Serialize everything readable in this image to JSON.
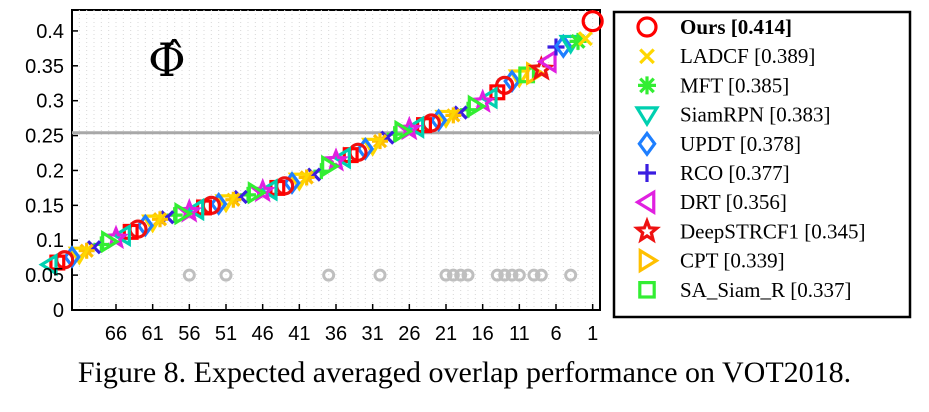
{
  "caption": "Figure 8. Expected averaged overlap performance on VOT2018.",
  "chart_data": {
    "type": "scatter",
    "title": "",
    "xlabel": "",
    "ylabel": "",
    "symbol_label": "Φ̂",
    "x_ticks": [
      "66",
      "61",
      "56",
      "51",
      "46",
      "41",
      "36",
      "31",
      "26",
      "21",
      "16",
      "11",
      "6",
      "1"
    ],
    "x_tick_ranks": [
      66,
      61,
      56,
      51,
      46,
      41,
      36,
      31,
      26,
      21,
      16,
      11,
      6,
      1
    ],
    "y_ticks": [
      "0",
      "0.05",
      "0.1",
      "0.15",
      "0.2",
      "0.25",
      "0.3",
      "0.35",
      "0.4"
    ],
    "y_tick_values": [
      0,
      0.05,
      0.1,
      0.15,
      0.2,
      0.25,
      0.3,
      0.35,
      0.4
    ],
    "xlim": [
      72,
      0
    ],
    "ylim": [
      0,
      0.43
    ],
    "reference_line": 0.254,
    "legend_position": "right-outside",
    "series": [
      {
        "name": "Ours",
        "score": "[0.414]",
        "marker": "circle",
        "color": "#ff0000",
        "rank": 1,
        "eao": 0.414,
        "bold": true
      },
      {
        "name": "LADCF",
        "score": "[0.389]",
        "marker": "x",
        "color": "#ffd700",
        "rank": 2,
        "eao": 0.389
      },
      {
        "name": "MFT",
        "score": "[0.385]",
        "marker": "asterisk",
        "color": "#33ee33",
        "rank": 3,
        "eao": 0.385
      },
      {
        "name": "SiamRPN",
        "score": "[0.383]",
        "marker": "triangle-down",
        "color": "#00d0b0",
        "rank": 4,
        "eao": 0.383
      },
      {
        "name": "UPDT",
        "score": "[0.378]",
        "marker": "diamond",
        "color": "#1e7fff",
        "rank": 5,
        "eao": 0.378
      },
      {
        "name": "RCO",
        "score": "[0.377]",
        "marker": "plus",
        "color": "#3a1de0",
        "rank": 6,
        "eao": 0.377
      },
      {
        "name": "DRT",
        "score": "[0.356]",
        "marker": "triangle-left",
        "color": "#e020e0",
        "rank": 7,
        "eao": 0.356
      },
      {
        "name": "DeepSTRCF1",
        "score": "[0.345]",
        "marker": "hexagram",
        "color": "#ee1111",
        "rank": 8,
        "eao": 0.345
      },
      {
        "name": "CPT",
        "score": "[0.339]",
        "marker": "triangle-right",
        "color": "#ffc000",
        "rank": 9,
        "eao": 0.339
      },
      {
        "name": "SA_Siam_R",
        "score": "[0.337]",
        "marker": "square",
        "color": "#33ee33",
        "rank": 10,
        "eao": 0.337
      }
    ],
    "other_trackers_eao": [
      0.334,
      0.328,
      0.322,
      0.312,
      0.304,
      0.298,
      0.292,
      0.287,
      0.283,
      0.279,
      0.276,
      0.272,
      0.268,
      0.265,
      0.262,
      0.259,
      0.256,
      0.252,
      0.247,
      0.242,
      0.236,
      0.231,
      0.226,
      0.222,
      0.218,
      0.214,
      0.206,
      0.199,
      0.194,
      0.19,
      0.186,
      0.182,
      0.178,
      0.175,
      0.172,
      0.17,
      0.168,
      0.165,
      0.162,
      0.158,
      0.155,
      0.152,
      0.15,
      0.147,
      0.144,
      0.141,
      0.138,
      0.136,
      0.133,
      0.13,
      0.126,
      0.121,
      0.116,
      0.112,
      0.107,
      0.103,
      0.098,
      0.094,
      0.09,
      0.085,
      0.08,
      0.076,
      0.072,
      0.068,
      0.065
    ],
    "other_markers": [
      "triangle-down",
      "diamond",
      "circle",
      "square",
      "triangle-left",
      "hexagram",
      "triangle-right",
      "plus",
      "x",
      "asterisk"
    ],
    "other_colors": [
      "#ff0000",
      "#ffd700",
      "#33ee33",
      "#00d0b0",
      "#1e7fff",
      "#3a1de0",
      "#e020e0",
      "#ee1111",
      "#ffc000",
      "#33ee33"
    ],
    "gray_marker_ranks": [
      56,
      51,
      37,
      30,
      21,
      20,
      19,
      18,
      14,
      13,
      12,
      11,
      9,
      8,
      4
    ],
    "gray_marker_value": 0.05
  }
}
